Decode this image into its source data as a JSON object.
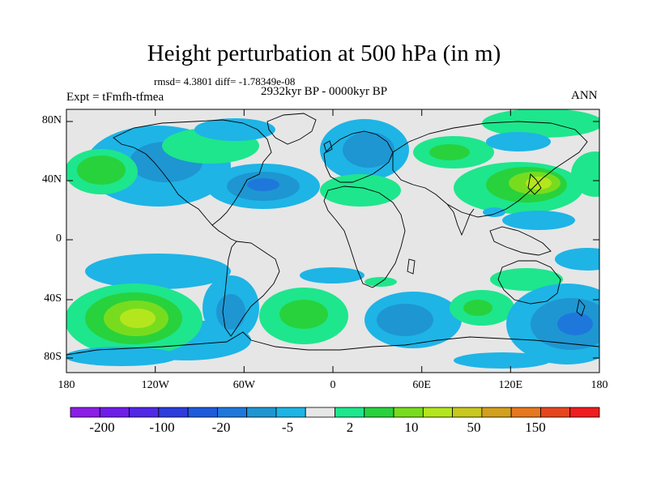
{
  "title": "Height perturbation at 500 hPa (in m)",
  "stats": "rmsd= 4.3801 diff= -1.78349e-08",
  "period": "2932kyr BP - 0000kyr BP",
  "experiment": "Expt = tFmfh-tfmea",
  "season": "ANN",
  "lat_ticks": [
    "80N",
    "40N",
    "0",
    "40S",
    "80S"
  ],
  "lon_ticks": [
    "180",
    "120W",
    "60W",
    "0",
    "60E",
    "120E",
    "180"
  ],
  "colorbar": {
    "colors": [
      "#8c1ee6",
      "#6e1ee8",
      "#5028e6",
      "#2d3cdc",
      "#1e5adc",
      "#1e78dc",
      "#1e96d2",
      "#1eb4e6",
      "#e6e6e6",
      "#1ee68c",
      "#28d23c",
      "#78dc1e",
      "#b4e61e",
      "#c8c81e",
      "#d2a01e",
      "#e6781e",
      "#e6461e",
      "#f01e1e"
    ],
    "labels": [
      "-200",
      "-100",
      "-20",
      "-5",
      "2",
      "10",
      "50",
      "150"
    ]
  },
  "map_colors": {
    "background": "#e6e6e6",
    "blue_light": "#1eb4e6",
    "blue_mid": "#1e96d2",
    "blue_dark": "#1e78dc",
    "green_light": "#1ee68c",
    "green_mid": "#28d23c",
    "green_yellow": "#78dc1e",
    "yellow": "#b4e61e"
  }
}
